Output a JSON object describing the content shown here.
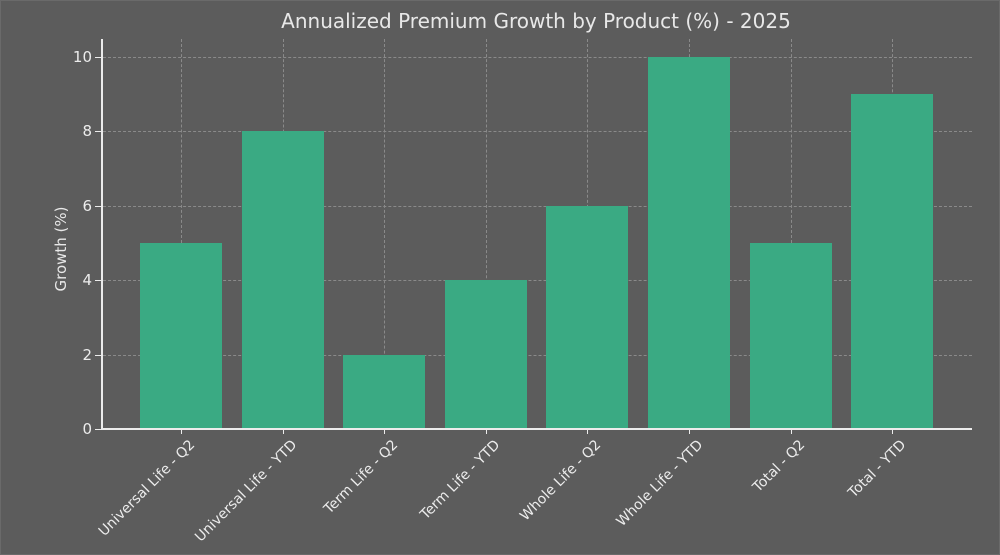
{
  "chart_data": {
    "type": "bar",
    "title": "Annualized Premium Growth by Product (%) - 2025",
    "xlabel": "",
    "ylabel": "Growth (%)",
    "categories": [
      "Universal Life - Q2",
      "Universal Life - YTD",
      "Term Life - Q2",
      "Term Life - YTD",
      "Whole Life - Q2",
      "Whole Life - YTD",
      "Total - Q2",
      "Total - YTD"
    ],
    "values": [
      5,
      8,
      2,
      4,
      6,
      10,
      5,
      9
    ],
    "ylim": [
      0,
      10.5
    ],
    "yticks": [
      "0",
      "2",
      "4",
      "6",
      "8",
      "10"
    ],
    "grid": true,
    "bar_color": "#3aaa83",
    "background_color": "#5c5c5c"
  }
}
